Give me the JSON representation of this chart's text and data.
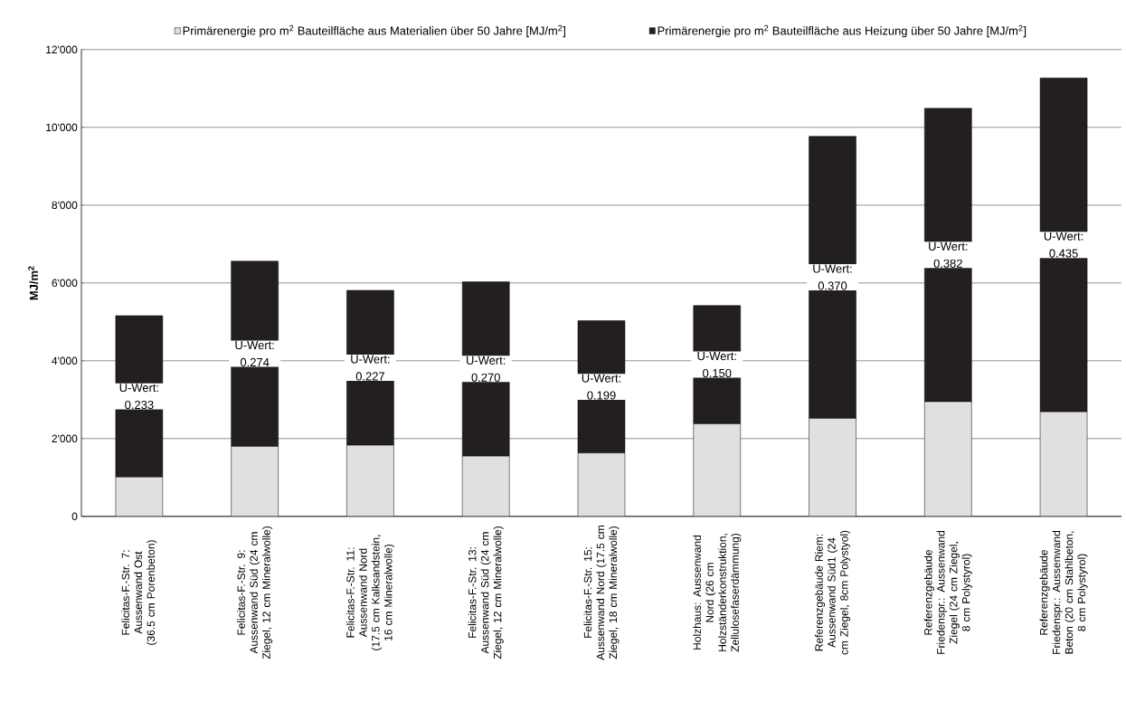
{
  "chart_data": {
    "type": "bar",
    "stacked": true,
    "ylabel": "**MJ/m$^{2}$**",
    "categories": [
      "Felicitas-F.-Str. 7: Aussenwand Ost (36.5 cm Porenbeton)",
      "Felicitas-F.-Str. 9: Aussenwand Süd (24 cm Ziegel, 12 cm Mineralwolle)",
      "Felicitas-F.-Str. 11: Aussenwand Nord (17.5 cm Kalksandstein, 16 cm Mineralwolle)",
      "Felicitas-F.-Str. 13: Aussenwand Süd (24 cm Ziegel, 12 cm Mineralwolle)",
      "Felicitas-F.-Str. 15: Aussenwand Nord (17.5 cm Ziegel, 18 cm Mineralwolle)",
      "Holzhaus: Aussenwand Nord (26 cm Holzständerkonstruktion, Zellulosefaserdämmung)",
      "Referenzgebäude Riem: Aussenwand Süd1 (24 cm Ziegel, 8cm Polystyol)",
      "Referenzgebäude Friedenspr.: Aussenwand Ziegel (24 cm Ziegel, 8 cm Polystyrol)",
      "Referenzgebäude Friedenspr.: Aussenwand Beton (20 cm Stahlbeton, 8 cm Polystyrol)"
    ],
    "series": [
      {
        "name": "Primärenergie pro m$^{2}$ Bauteilfläche aus Materialien über 50 Jahre [MJ/m$^{2}$]",
        "color": "#e0e0e0",
        "values": [
          1010,
          1800,
          1830,
          1550,
          1630,
          2380,
          2520,
          2950,
          2690
        ]
      },
      {
        "name": "Primärenergie pro m$^{2}$ Bauteilfläche aus Heizung über 50 Jahre [MJ/m$^{2}$]",
        "color": "#231f20",
        "values": [
          4150,
          4760,
          3980,
          4480,
          3400,
          3040,
          7250,
          7540,
          8580
        ]
      }
    ],
    "ylim": [
      0,
      12000
    ],
    "yticks": [
      0,
      {
        "value": 2000,
        "label": "2'000"
      },
      {
        "value": 4000,
        "label": "4'000"
      },
      {
        "value": 6000,
        "label": "6'000"
      },
      {
        "value": 8000,
        "label": "8'000"
      },
      {
        "value": 10000,
        "label": "10'000"
      },
      {
        "value": 12000,
        "label": "12'000"
      }
    ],
    "grid": "y",
    "legend": "top",
    "annotations": [
      "U-Wert: 0.233",
      "U-Wert: 0.274",
      "U-Wert: 0.227",
      "U-Wert: 0.270",
      "U-Wert: 0.199",
      "U-Wert: 0.150",
      "U-Wert: 0.370",
      "U-Wert: 0.382",
      "U-Wert: 0.435"
    ]
  }
}
